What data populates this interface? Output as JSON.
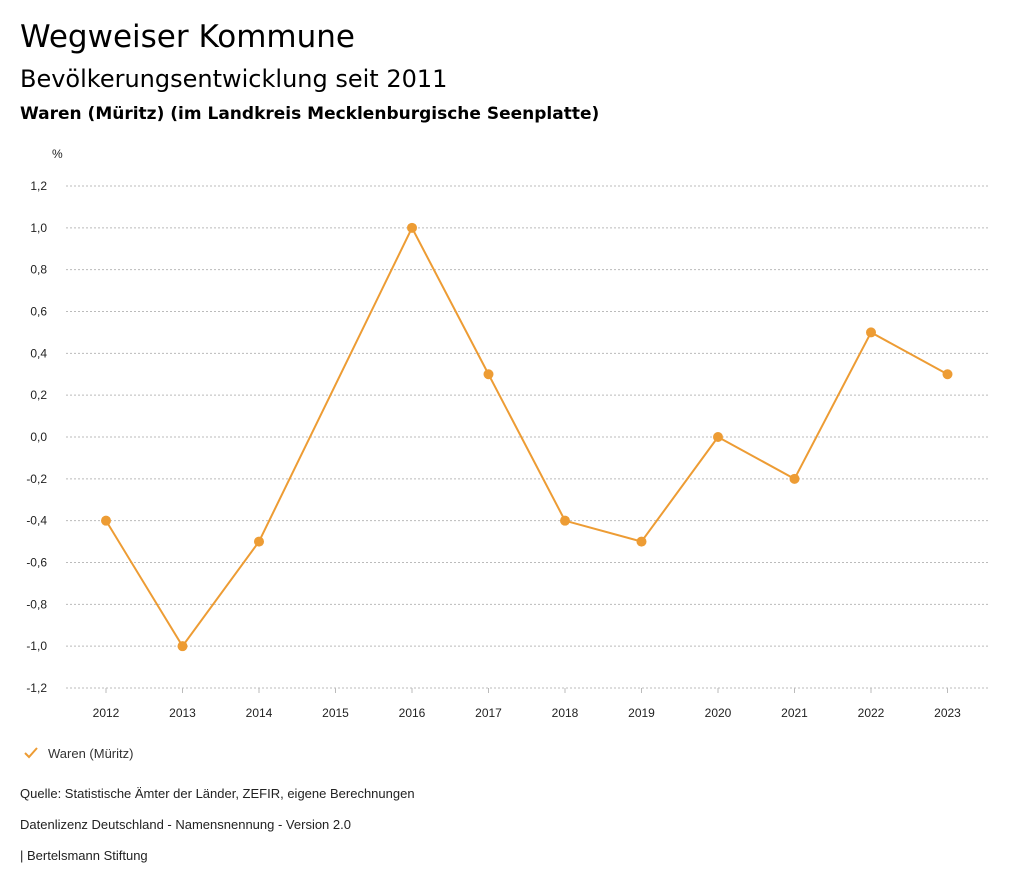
{
  "header": {
    "title": "Wegweiser Kommune",
    "subtitle": "Bevölkerungsentwicklung seit 2011",
    "region": "Waren (Müritz) (im Landkreis Mecklenburgische Seenplatte)"
  },
  "chart_data": {
    "type": "line",
    "title": "",
    "xlabel": "",
    "ylabel": "%",
    "categories": [
      "2012",
      "2013",
      "2014",
      "2015",
      "2016",
      "2017",
      "2018",
      "2019",
      "2020",
      "2021",
      "2022",
      "2023"
    ],
    "series": [
      {
        "name": "Waren (Müritz)",
        "points": [
          {
            "x": "2012",
            "y": -0.4
          },
          {
            "x": "2013",
            "y": -1.0
          },
          {
            "x": "2014",
            "y": -0.5
          },
          {
            "x": "2016",
            "y": 1.0
          },
          {
            "x": "2017",
            "y": 0.3
          },
          {
            "x": "2018",
            "y": -0.4
          },
          {
            "x": "2019",
            "y": -0.5
          },
          {
            "x": "2020",
            "y": 0.0
          },
          {
            "x": "2021",
            "y": -0.2
          },
          {
            "x": "2022",
            "y": 0.5
          },
          {
            "x": "2023",
            "y": 0.3
          }
        ],
        "color": "#ED9C34"
      }
    ],
    "ylim": [
      -1.2,
      1.2
    ],
    "yticks": [
      "1,2",
      "1,0",
      "0,8",
      "0,6",
      "0,4",
      "0,2",
      "0,0",
      "-0,2",
      "-0,4",
      "-0,6",
      "-0,8",
      "-1,0",
      "-1,2"
    ],
    "ytick_values": [
      1.2,
      1.0,
      0.8,
      0.6,
      0.4,
      0.2,
      0.0,
      -0.2,
      -0.4,
      -0.6,
      -0.8,
      -1.0,
      -1.2
    ],
    "grid": true,
    "legend": "bottom-left"
  },
  "legend": {
    "label": "Waren (Müritz)",
    "icon": "check-icon"
  },
  "footer": {
    "source": "Quelle: Statistische Ämter der Länder, ZEFIR, eigene Berechnungen",
    "license": "Datenlizenz Deutschland - Namensnennung - Version 2.0",
    "credit": "| Bertelsmann Stiftung"
  },
  "colors": {
    "series": "#ED9C34",
    "grid": "#BBBBBB",
    "axis_text": "#222222"
  }
}
